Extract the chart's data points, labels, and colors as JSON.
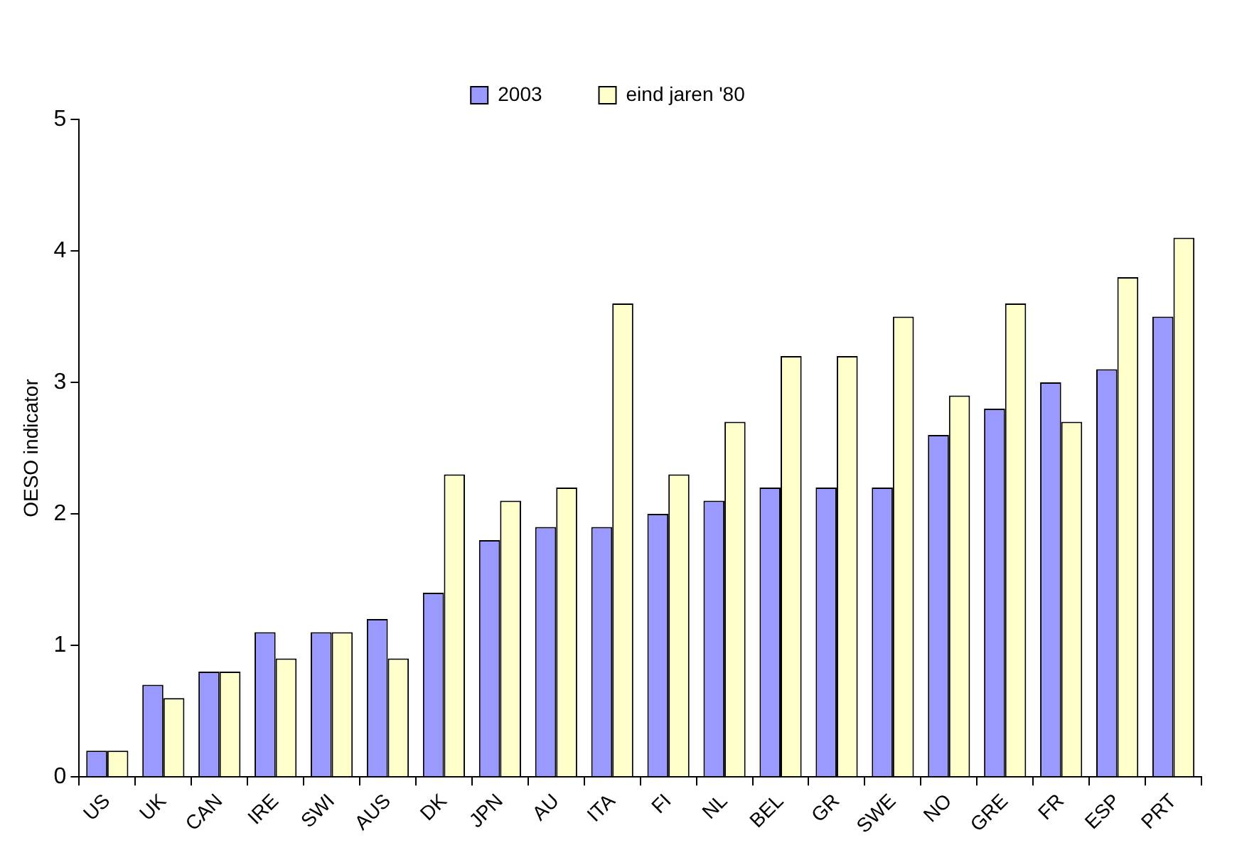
{
  "chart_data": {
    "type": "bar",
    "ylabel": "OESO indicator",
    "categories": [
      "US",
      "UK",
      "CAN",
      "IRE",
      "SWI",
      "AUS",
      "DK",
      "JPN",
      "AU",
      "ITA",
      "FI",
      "NL",
      "BEL",
      "GR",
      "SWE",
      "NO",
      "GRE",
      "FR",
      "ESP",
      "PRT"
    ],
    "series": [
      {
        "name": "2003",
        "color": "#9999ff",
        "values": [
          0.2,
          0.7,
          0.8,
          1.1,
          1.1,
          1.2,
          1.4,
          1.8,
          1.9,
          1.9,
          2.0,
          2.1,
          2.2,
          2.2,
          2.2,
          2.6,
          2.8,
          3.0,
          3.1,
          3.5
        ]
      },
      {
        "name": "eind jaren '80",
        "color": "#ffffcc",
        "values": [
          0.2,
          0.6,
          0.8,
          0.9,
          1.1,
          0.9,
          2.3,
          2.1,
          2.2,
          3.6,
          2.3,
          2.7,
          3.2,
          3.2,
          3.5,
          2.9,
          3.6,
          2.7,
          3.8,
          4.1
        ]
      }
    ],
    "ylim": [
      0,
      5
    ],
    "yticks": [
      0,
      1,
      2,
      3,
      4,
      5
    ],
    "grid": false,
    "legend": "top"
  }
}
